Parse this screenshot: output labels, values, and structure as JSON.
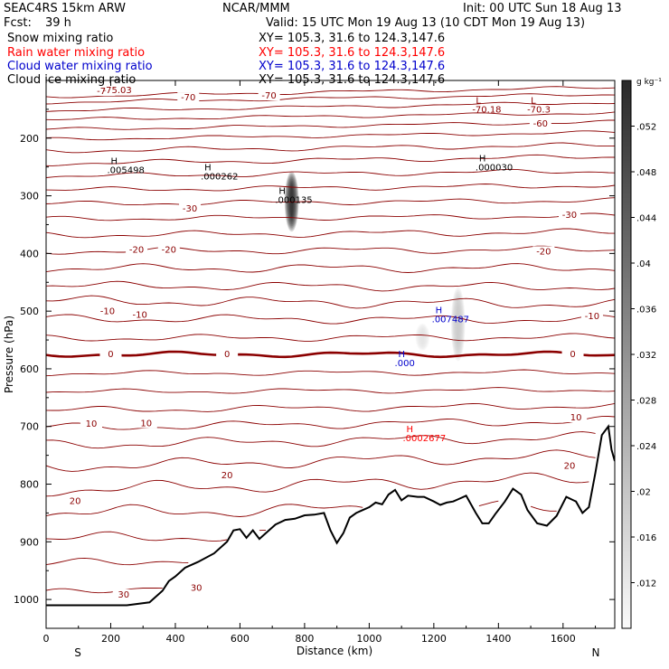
{
  "header": {
    "model": "SEAC4RS 15km ARW",
    "org": "NCAR/MMM",
    "init": "Init: 00 UTC Sun 18 Aug 13",
    "fcst_label": "Fcst:",
    "fcst_value": "39 h",
    "valid": "Valid: 15 UTC Mon 19 Aug 13 (10 CDT Mon 19 Aug 13)",
    "fields": [
      {
        "name": "Snow mixing ratio",
        "xy": "XY= 105.3, 31.6 to 124.3,147.6",
        "color": "#000000"
      },
      {
        "name": "Rain water mixing ratio",
        "xy": "XY= 105.3, 31.6 to 124.3,147.6",
        "color": "#ff0000"
      },
      {
        "name": "Cloud water mixing ratio",
        "xy": "XY= 105.3, 31.6 to 124.3,147.6",
        "color": "#0000cc"
      },
      {
        "name": "Cloud ice mixing ratio",
        "xy": "XY= 105.3, 31.6 to 124.3,147.6",
        "color": "#000000"
      }
    ]
  },
  "chart_data": {
    "type": "contour",
    "xlabel": "Distance (km)",
    "ylabel": "Pressure (hPa)",
    "xlim": [
      0,
      1760
    ],
    "ylim": [
      1050,
      100
    ],
    "x_ticks": [
      0,
      200,
      400,
      600,
      800,
      1000,
      1200,
      1400,
      1600
    ],
    "y_ticks": [
      200,
      300,
      400,
      500,
      600,
      700,
      800,
      900,
      1000
    ],
    "y_tick_labels": [
      "200",
      "300",
      "400",
      "500",
      "600",
      "700",
      "800",
      "900",
      "1000"
    ],
    "x_tick_labels": [
      "0",
      "200",
      "400",
      "600",
      "800",
      "1000",
      "1200",
      "1400",
      "1600"
    ],
    "direction_labels": {
      "left": "S",
      "right": "N"
    },
    "temperature_contours_degC": {
      "color": "#8b0000",
      "freezing_level_hPa": 575,
      "labels": [
        {
          "text": "-70",
          "x": 180,
          "p": 122
        },
        {
          "text": "-75.03",
          "x": 220,
          "p": 120
        },
        {
          "text": "-70",
          "x": 440,
          "p": 133
        },
        {
          "text": "-70",
          "x": 690,
          "p": 130
        },
        {
          "text": "-60",
          "x": 1530,
          "p": 178
        },
        {
          "text": "-30",
          "x": 445,
          "p": 326
        },
        {
          "text": "-30",
          "x": 1620,
          "p": 337
        },
        {
          "text": "-20",
          "x": 280,
          "p": 397
        },
        {
          "text": "-20",
          "x": 380,
          "p": 397
        },
        {
          "text": "-20",
          "x": 1540,
          "p": 400
        },
        {
          "text": "-10",
          "x": 190,
          "p": 504
        },
        {
          "text": "-10",
          "x": 290,
          "p": 510
        },
        {
          "text": "-10",
          "x": 1690,
          "p": 512
        },
        {
          "text": "0",
          "x": 200,
          "p": 578
        },
        {
          "text": "0",
          "x": 560,
          "p": 578
        },
        {
          "text": "0",
          "x": 1630,
          "p": 578
        },
        {
          "text": "10",
          "x": 140,
          "p": 699
        },
        {
          "text": "10",
          "x": 310,
          "p": 698
        },
        {
          "text": "10",
          "x": 1640,
          "p": 688
        },
        {
          "text": "20",
          "x": 560,
          "p": 788
        },
        {
          "text": "20",
          "x": 90,
          "p": 833
        },
        {
          "text": "20",
          "x": 1620,
          "p": 772
        },
        {
          "text": "30",
          "x": 240,
          "p": 995
        },
        {
          "text": "30",
          "x": 465,
          "p": 983
        }
      ]
    },
    "extrema": [
      {
        "label": "H",
        "value": ".005498",
        "x": 200,
        "p": 245,
        "color": "#000000"
      },
      {
        "label": "H",
        "value": ".000262",
        "x": 490,
        "p": 256,
        "color": "#000000"
      },
      {
        "label": "H",
        "value": ".000135",
        "x": 720,
        "p": 297,
        "color": "#000000"
      },
      {
        "label": "H",
        "value": ".000030",
        "x": 1340,
        "p": 240,
        "color": "#000000"
      },
      {
        "label": "H",
        "value": ".007487",
        "x": 1205,
        "p": 504,
        "color": "#0000cc"
      },
      {
        "label": "H",
        "value": ".000",
        "x": 1090,
        "p": 580,
        "color": "#0000cc"
      },
      {
        "label": "H",
        "value": ".0002677",
        "x": 1115,
        "p": 710,
        "color": "#ff0000"
      },
      {
        "label": "L",
        "value": "-70.18",
        "x": 1330,
        "p": 140,
        "color": "#8b0000"
      },
      {
        "label": "L",
        "value": "-70.3",
        "x": 1500,
        "p": 140,
        "color": "#8b0000"
      }
    ],
    "terrain_pressure_hPa": [
      [
        0,
        1010
      ],
      [
        120,
        1010
      ],
      [
        250,
        1010
      ],
      [
        320,
        1005
      ],
      [
        360,
        985
      ],
      [
        380,
        968
      ],
      [
        400,
        960
      ],
      [
        430,
        945
      ],
      [
        470,
        935
      ],
      [
        520,
        920
      ],
      [
        560,
        900
      ],
      [
        580,
        880
      ],
      [
        600,
        878
      ],
      [
        620,
        893
      ],
      [
        640,
        880
      ],
      [
        660,
        895
      ],
      [
        680,
        885
      ],
      [
        710,
        870
      ],
      [
        740,
        862
      ],
      [
        770,
        860
      ],
      [
        800,
        854
      ],
      [
        830,
        853
      ],
      [
        860,
        850
      ],
      [
        880,
        880
      ],
      [
        900,
        902
      ],
      [
        920,
        885
      ],
      [
        940,
        858
      ],
      [
        960,
        850
      ],
      [
        980,
        845
      ],
      [
        1000,
        840
      ],
      [
        1020,
        832
      ],
      [
        1040,
        835
      ],
      [
        1060,
        818
      ],
      [
        1080,
        810
      ],
      [
        1100,
        828
      ],
      [
        1120,
        820
      ],
      [
        1150,
        822
      ],
      [
        1170,
        822
      ],
      [
        1200,
        830
      ],
      [
        1220,
        836
      ],
      [
        1240,
        832
      ],
      [
        1260,
        830
      ],
      [
        1280,
        825
      ],
      [
        1300,
        820
      ],
      [
        1330,
        850
      ],
      [
        1350,
        868
      ],
      [
        1370,
        868
      ],
      [
        1390,
        852
      ],
      [
        1420,
        830
      ],
      [
        1445,
        808
      ],
      [
        1470,
        818
      ],
      [
        1490,
        845
      ],
      [
        1520,
        868
      ],
      [
        1550,
        872
      ],
      [
        1580,
        855
      ],
      [
        1610,
        822
      ],
      [
        1640,
        830
      ],
      [
        1660,
        850
      ],
      [
        1680,
        840
      ],
      [
        1700,
        780
      ],
      [
        1720,
        715
      ],
      [
        1740,
        700
      ],
      [
        1750,
        740
      ],
      [
        1760,
        760
      ]
    ],
    "colorbar": {
      "unit": "g kg⁻¹",
      "tick_labels": [
        ".052",
        ".048",
        ".044",
        ".04",
        ".036",
        ".032",
        ".028",
        ".024",
        ".02",
        ".016",
        ".012"
      ],
      "tick_values": [
        0.052,
        0.048,
        0.044,
        0.04,
        0.036,
        0.032,
        0.028,
        0.024,
        0.02,
        0.016,
        0.012
      ],
      "min": 0.008,
      "max": 0.056
    },
    "shaded_features": [
      {
        "x": 760,
        "p_top": 255,
        "p_bottom": 365,
        "peak": 0.056
      },
      {
        "x": 1275,
        "p_top": 455,
        "p_bottom": 590,
        "peak": 0.018
      },
      {
        "x": 1165,
        "p_top": 520,
        "p_bottom": 570,
        "peak": 0.012
      }
    ]
  }
}
